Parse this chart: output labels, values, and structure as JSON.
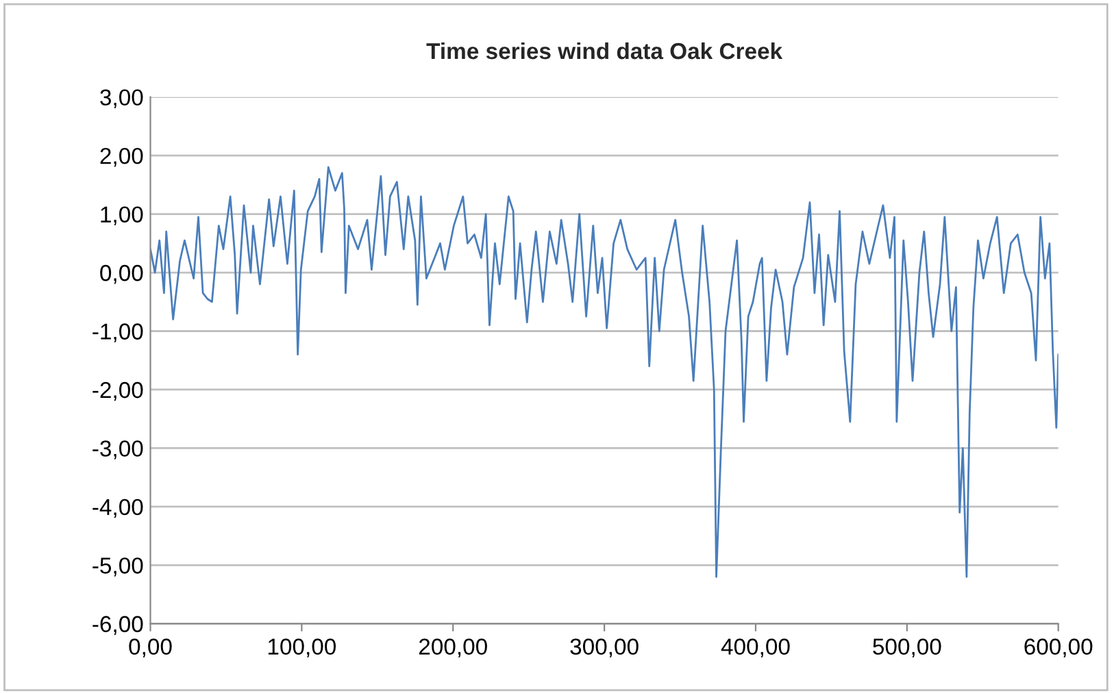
{
  "chart_data": {
    "type": "line",
    "title": "Time series wind data Oak Creek",
    "xlim": [
      0,
      600
    ],
    "xticks": [
      {
        "value": 0,
        "label": "0,00"
      },
      {
        "value": 100,
        "label": "100,00"
      },
      {
        "value": 200,
        "label": "200,00"
      },
      {
        "value": 300,
        "label": "300,00"
      },
      {
        "value": 400,
        "label": "400,00"
      },
      {
        "value": 500,
        "label": "500,00"
      },
      {
        "value": 600,
        "label": "600,00"
      }
    ],
    "ylim": [
      -6,
      3
    ],
    "yticks": [
      {
        "value": -6,
        "label": "-6,00"
      },
      {
        "value": -5,
        "label": "-5,00"
      },
      {
        "value": -4,
        "label": "-4,00"
      },
      {
        "value": -3,
        "label": "-3,00"
      },
      {
        "value": -2,
        "label": "-2,00"
      },
      {
        "value": -1,
        "label": "-1,00"
      },
      {
        "value": 0,
        "label": "0,00"
      },
      {
        "value": 1,
        "label": "1,00"
      },
      {
        "value": 2,
        "label": "2,00"
      },
      {
        "value": 3,
        "label": "3,00"
      }
    ],
    "grid": "y",
    "legend": false,
    "marker": "none",
    "line_style": "solid",
    "series": [
      {
        "color": "#4a7ebb",
        "x": [
          0,
          3,
          6,
          9,
          10.5,
          15,
          19.5,
          22.6,
          28.6,
          31.7,
          34.7,
          37.7,
          40.7,
          45.2,
          48.2,
          52.8,
          55.8,
          57.3,
          61.8,
          66.3,
          67.9,
          72.4,
          78.4,
          81.4,
          86,
          90.5,
          95,
          97.4,
          99.5,
          104,
          108.6,
          111.6,
          113.1,
          117.6,
          122.2,
          126.7,
          128.1,
          129,
          131.2,
          137.2,
          143.3,
          146.2,
          152.3,
          155.3,
          158.4,
          162.9,
          167.4,
          170.4,
          174.9,
          176.5,
          178.8,
          182.4,
          188.5,
          191.5,
          194.6,
          200.5,
          206.6,
          209.6,
          214.1,
          218.6,
          221.7,
          224.1,
          227.7,
          230.8,
          236.7,
          239.8,
          241.3,
          244.3,
          248.9,
          251.9,
          254.8,
          259.4,
          263.9,
          268.4,
          271.5,
          276,
          279,
          283.5,
          288,
          292.6,
          295.6,
          298.6,
          301.6,
          306.1,
          310.7,
          315.2,
          321.3,
          327.2,
          329.7,
          333.3,
          336.3,
          339.4,
          346.9,
          351.4,
          355.9,
          358.9,
          365,
          369.5,
          372.5,
          374,
          377,
          380.1,
          387.6,
          390.6,
          392.1,
          395.1,
          398.2,
          402.7,
          404.2,
          407.2,
          410.2,
          413.2,
          417.7,
          420.8,
          425.3,
          431.3,
          435.8,
          438.9,
          441.9,
          444.9,
          447.9,
          452.5,
          455.5,
          458.5,
          462.4,
          466.1,
          470.6,
          475.1,
          479.6,
          484.2,
          488.7,
          491.7,
          493.2,
          497.7,
          500.7,
          503.7,
          508.2,
          511.3,
          514.3,
          517.3,
          521.8,
          524.9,
          529.4,
          532.4,
          534.8,
          536.9,
          539.4,
          541.4,
          543.9,
          546.9,
          550.5,
          555,
          559.5,
          564,
          568.6,
          573.1,
          577.6,
          582.1,
          585.2,
          588.2,
          591.2,
          594.2,
          596.4,
          598.7,
          600
        ],
        "values": [
          0.4,
          0,
          0.55,
          -0.35,
          0.7,
          -0.8,
          0.2,
          0.55,
          -0.1,
          0.95,
          -0.35,
          -0.45,
          -0.5,
          0.8,
          0.4,
          1.3,
          0.3,
          -0.7,
          1.15,
          0,
          0.8,
          -0.2,
          1.25,
          0.45,
          1.3,
          0.15,
          1.4,
          -1.4,
          0.05,
          1.05,
          1.3,
          1.6,
          0.35,
          1.8,
          1.4,
          1.7,
          1.1,
          -0.35,
          0.8,
          0.4,
          0.9,
          0.05,
          1.65,
          0.3,
          1.3,
          1.55,
          0.4,
          1.3,
          0.55,
          -0.55,
          1.3,
          -0.1,
          0.3,
          0.5,
          0.05,
          0.8,
          1.3,
          0.5,
          0.65,
          0.25,
          1.0,
          -0.9,
          0.5,
          -0.2,
          1.3,
          1.05,
          -0.45,
          0.5,
          -0.85,
          0.05,
          0.7,
          -0.5,
          0.7,
          0.15,
          0.9,
          0.15,
          -0.5,
          1.0,
          -0.75,
          0.8,
          -0.35,
          0.25,
          -0.95,
          0.5,
          0.9,
          0.4,
          0.05,
          0.25,
          -1.6,
          0.25,
          -1.0,
          0.05,
          0.9,
          0,
          -0.75,
          -1.85,
          0.8,
          -0.5,
          -2.0,
          -5.2,
          -3.05,
          -1.0,
          0.55,
          -1.15,
          -2.55,
          -0.75,
          -0.5,
          0.15,
          0.25,
          -1.85,
          -0.6,
          0.05,
          -0.5,
          -1.4,
          -0.25,
          0.25,
          1.2,
          -0.35,
          0.65,
          -0.9,
          0.3,
          -0.5,
          1.05,
          -1.35,
          -2.55,
          -0.2,
          0.7,
          0.15,
          0.65,
          1.15,
          0.25,
          0.95,
          -2.55,
          0.55,
          -0.5,
          -1.85,
          0,
          0.7,
          -0.35,
          -1.1,
          -0.2,
          0.95,
          -1.0,
          -0.25,
          -4.1,
          -3.0,
          -5.2,
          -2.4,
          -0.6,
          0.55,
          -0.1,
          0.5,
          0.95,
          -0.35,
          0.5,
          0.65,
          0,
          -0.35,
          -1.5,
          0.95,
          -0.1,
          0.5,
          -1.35,
          -2.65,
          -1.4
        ]
      }
    ]
  }
}
